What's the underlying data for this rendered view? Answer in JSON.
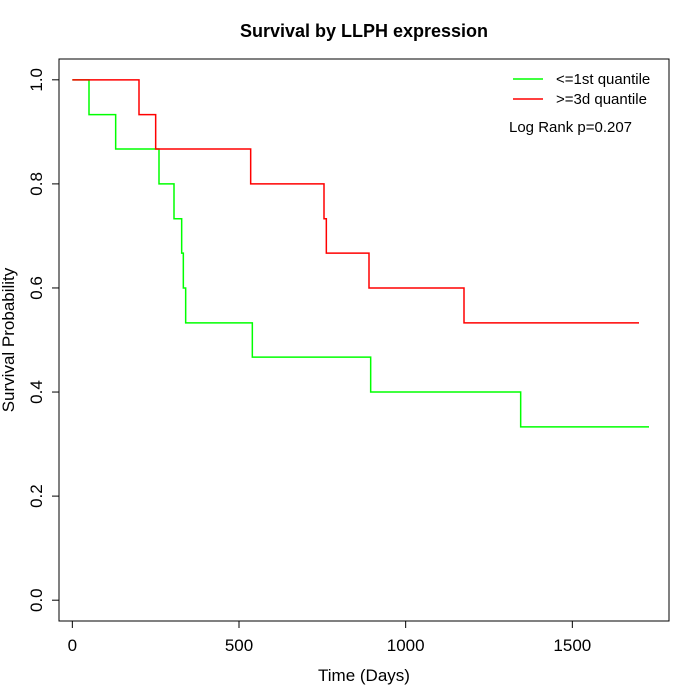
{
  "chart_data": {
    "type": "line",
    "subtype": "step",
    "title": "Survival by LLPH expression",
    "xlabel": "Time (Days)",
    "ylabel": "Survival Probability",
    "xlim": [
      -40,
      1790
    ],
    "ylim": [
      -0.04,
      1.04
    ],
    "xticks": [
      0,
      500,
      1000,
      1500
    ],
    "yticks": [
      0.0,
      0.2,
      0.4,
      0.6,
      0.8,
      1.0
    ],
    "xtick_labels": [
      "0",
      "500",
      "1000",
      "1500"
    ],
    "ytick_labels": [
      "0.0",
      "0.2",
      "0.4",
      "0.6",
      "0.8",
      "1.0"
    ],
    "grid": false,
    "legend_position": "top-right",
    "annotation": "Log Rank p=0.207",
    "series": [
      {
        "name": "<=1st quantile",
        "color": "#00ff00",
        "x": [
          0,
          50,
          130,
          260,
          305,
          328,
          333,
          340,
          540,
          895,
          1345,
          1730
        ],
        "y": [
          1.0,
          0.933,
          0.867,
          0.8,
          0.733,
          0.667,
          0.6,
          0.533,
          0.467,
          0.4,
          0.333,
          0.333
        ]
      },
      {
        "name": ">=3d quantile",
        "color": "#ff0000",
        "x": [
          0,
          200,
          250,
          535,
          755,
          762,
          890,
          1175,
          1700
        ],
        "y": [
          1.0,
          0.933,
          0.867,
          0.8,
          0.733,
          0.667,
          0.6,
          0.533,
          0.533
        ]
      }
    ]
  }
}
